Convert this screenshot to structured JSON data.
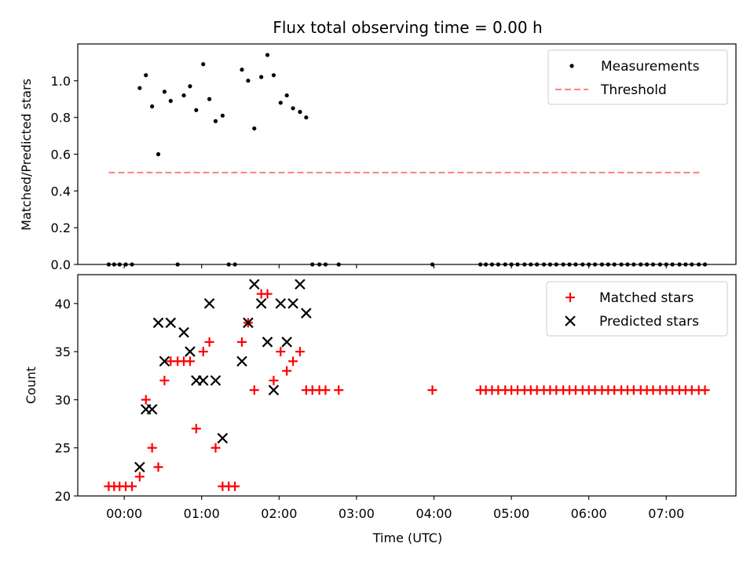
{
  "figure_title": "Flux total observing time = 0.00 h",
  "xlabel": "Time (UTC)",
  "chart_data": [
    {
      "type": "scatter",
      "panel": "top",
      "ylabel": "Matched/Predicted stars",
      "ylim": [
        0,
        1.2
      ],
      "yticks": [
        0.0,
        0.2,
        0.4,
        0.6,
        0.8,
        1.0
      ],
      "xlim": [
        -0.6,
        7.9
      ],
      "legend_position": "top-right",
      "colors": {
        "measurements": "#000000",
        "threshold": "#ff7f7f"
      },
      "series": [
        {
          "name": "Measurements",
          "style": "dot",
          "points": [
            [
              -0.2,
              0.0
            ],
            [
              -0.13,
              0.0
            ],
            [
              -0.06,
              0.0
            ],
            [
              0.02,
              0.0
            ],
            [
              0.1,
              0.0
            ],
            [
              0.2,
              0.96
            ],
            [
              0.28,
              1.03
            ],
            [
              0.36,
              0.86
            ],
            [
              0.44,
              0.6
            ],
            [
              0.52,
              0.94
            ],
            [
              0.6,
              0.89
            ],
            [
              0.69,
              0.0
            ],
            [
              0.77,
              0.92
            ],
            [
              0.85,
              0.97
            ],
            [
              0.93,
              0.84
            ],
            [
              1.02,
              1.09
            ],
            [
              1.1,
              0.9
            ],
            [
              1.18,
              0.78
            ],
            [
              1.27,
              0.81
            ],
            [
              1.35,
              0.0
            ],
            [
              1.43,
              0.0
            ],
            [
              1.52,
              1.06
            ],
            [
              1.6,
              1.0
            ],
            [
              1.68,
              0.74
            ],
            [
              1.77,
              1.02
            ],
            [
              1.85,
              1.14
            ],
            [
              1.93,
              1.03
            ],
            [
              2.02,
              0.88
            ],
            [
              2.1,
              0.92
            ],
            [
              2.18,
              0.85
            ],
            [
              2.27,
              0.83
            ],
            [
              2.35,
              0.8
            ],
            [
              2.43,
              0.0
            ],
            [
              2.52,
              0.0
            ],
            [
              2.6,
              0.0
            ],
            [
              2.77,
              0.0
            ],
            [
              3.98,
              0.0
            ],
            [
              4.6,
              0.0
            ],
            [
              4.67,
              0.0
            ],
            [
              4.75,
              0.0
            ],
            [
              4.83,
              0.0
            ],
            [
              4.92,
              0.0
            ],
            [
              5.0,
              0.0
            ],
            [
              5.08,
              0.0
            ],
            [
              5.17,
              0.0
            ],
            [
              5.25,
              0.0
            ],
            [
              5.33,
              0.0
            ],
            [
              5.42,
              0.0
            ],
            [
              5.5,
              0.0
            ],
            [
              5.58,
              0.0
            ],
            [
              5.67,
              0.0
            ],
            [
              5.75,
              0.0
            ],
            [
              5.83,
              0.0
            ],
            [
              5.92,
              0.0
            ],
            [
              6.0,
              0.0
            ],
            [
              6.08,
              0.0
            ],
            [
              6.17,
              0.0
            ],
            [
              6.25,
              0.0
            ],
            [
              6.33,
              0.0
            ],
            [
              6.42,
              0.0
            ],
            [
              6.5,
              0.0
            ],
            [
              6.58,
              0.0
            ],
            [
              6.67,
              0.0
            ],
            [
              6.75,
              0.0
            ],
            [
              6.83,
              0.0
            ],
            [
              6.92,
              0.0
            ],
            [
              7.0,
              0.0
            ],
            [
              7.08,
              0.0
            ],
            [
              7.17,
              0.0
            ],
            [
              7.25,
              0.0
            ],
            [
              7.33,
              0.0
            ],
            [
              7.42,
              0.0
            ],
            [
              7.5,
              0.0
            ]
          ]
        },
        {
          "name": "Threshold",
          "style": "dashed-line",
          "points": [
            [
              -0.2,
              0.5
            ],
            [
              7.45,
              0.5
            ]
          ]
        }
      ]
    },
    {
      "type": "scatter",
      "panel": "bottom",
      "ylabel": "Count",
      "ylim": [
        20,
        43
      ],
      "yticks": [
        20,
        25,
        30,
        35,
        40
      ],
      "xlim": [
        -0.6,
        7.9
      ],
      "xticks": [
        0,
        1,
        2,
        3,
        4,
        5,
        6,
        7
      ],
      "xticklabels": [
        "00:00",
        "01:00",
        "02:00",
        "03:00",
        "04:00",
        "05:00",
        "06:00",
        "07:00"
      ],
      "legend_position": "top-right",
      "colors": {
        "matched": "#ff0000",
        "predicted": "#000000"
      },
      "series": [
        {
          "name": "Matched stars",
          "marker": "plus",
          "points": [
            [
              -0.2,
              21
            ],
            [
              -0.13,
              21
            ],
            [
              -0.06,
              21
            ],
            [
              0.02,
              21
            ],
            [
              0.1,
              21
            ],
            [
              0.2,
              22
            ],
            [
              0.28,
              30
            ],
            [
              0.36,
              25
            ],
            [
              0.44,
              23
            ],
            [
              0.52,
              32
            ],
            [
              0.6,
              34
            ],
            [
              0.69,
              34
            ],
            [
              0.77,
              34
            ],
            [
              0.85,
              34
            ],
            [
              0.93,
              27
            ],
            [
              1.02,
              35
            ],
            [
              1.1,
              36
            ],
            [
              1.18,
              25
            ],
            [
              1.27,
              21
            ],
            [
              1.35,
              21
            ],
            [
              1.43,
              21
            ],
            [
              1.52,
              36
            ],
            [
              1.6,
              38
            ],
            [
              1.68,
              31
            ],
            [
              1.77,
              41
            ],
            [
              1.85,
              41
            ],
            [
              1.93,
              32
            ],
            [
              2.02,
              35
            ],
            [
              2.1,
              33
            ],
            [
              2.18,
              34
            ],
            [
              2.27,
              35
            ],
            [
              2.35,
              31
            ],
            [
              2.43,
              31
            ],
            [
              2.52,
              31
            ],
            [
              2.6,
              31
            ],
            [
              2.77,
              31
            ],
            [
              3.98,
              31
            ],
            [
              4.6,
              31
            ],
            [
              4.67,
              31
            ],
            [
              4.75,
              31
            ],
            [
              4.83,
              31
            ],
            [
              4.92,
              31
            ],
            [
              5.0,
              31
            ],
            [
              5.08,
              31
            ],
            [
              5.17,
              31
            ],
            [
              5.25,
              31
            ],
            [
              5.33,
              31
            ],
            [
              5.42,
              31
            ],
            [
              5.5,
              31
            ],
            [
              5.58,
              31
            ],
            [
              5.67,
              31
            ],
            [
              5.75,
              31
            ],
            [
              5.83,
              31
            ],
            [
              5.92,
              31
            ],
            [
              6.0,
              31
            ],
            [
              6.08,
              31
            ],
            [
              6.17,
              31
            ],
            [
              6.25,
              31
            ],
            [
              6.33,
              31
            ],
            [
              6.42,
              31
            ],
            [
              6.5,
              31
            ],
            [
              6.58,
              31
            ],
            [
              6.67,
              31
            ],
            [
              6.75,
              31
            ],
            [
              6.83,
              31
            ],
            [
              6.92,
              31
            ],
            [
              7.0,
              31
            ],
            [
              7.08,
              31
            ],
            [
              7.17,
              31
            ],
            [
              7.25,
              31
            ],
            [
              7.33,
              31
            ],
            [
              7.42,
              31
            ],
            [
              7.5,
              31
            ]
          ]
        },
        {
          "name": "Predicted stars",
          "marker": "x",
          "points": [
            [
              0.2,
              23
            ],
            [
              0.28,
              29
            ],
            [
              0.36,
              29
            ],
            [
              0.44,
              38
            ],
            [
              0.52,
              34
            ],
            [
              0.6,
              38
            ],
            [
              0.77,
              37
            ],
            [
              0.85,
              35
            ],
            [
              0.93,
              32
            ],
            [
              1.02,
              32
            ],
            [
              1.1,
              40
            ],
            [
              1.18,
              32
            ],
            [
              1.27,
              26
            ],
            [
              1.52,
              34
            ],
            [
              1.6,
              38
            ],
            [
              1.68,
              42
            ],
            [
              1.77,
              40
            ],
            [
              1.85,
              36
            ],
            [
              1.93,
              31
            ],
            [
              2.02,
              40
            ],
            [
              2.1,
              36
            ],
            [
              2.18,
              40
            ],
            [
              2.27,
              42
            ],
            [
              2.35,
              39
            ]
          ]
        }
      ]
    }
  ]
}
